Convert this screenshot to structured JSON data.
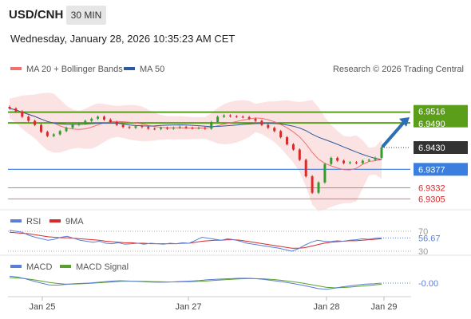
{
  "header": {
    "symbol": "USD/CNH",
    "interval": "30 MIN",
    "datetime": "Wednesday, January 28, 2026 10:35:23 AM CET",
    "credit": "Research © 2026 Trading Central"
  },
  "colors": {
    "up": "#2f9e2f",
    "down": "#d62b2b",
    "ma20": "#f07070",
    "ma50": "#2c5aa0",
    "band_fill": "#fbd9d9",
    "resistance": "#5a9e1a",
    "support_blue": "#3a7fe0",
    "support_red": "#e57373",
    "arrow": "#2c6fb5",
    "rsi": "#5b7fd6",
    "rsi_ma": "#d62b2b",
    "macd": "#5b7fd6",
    "macd_signal": "#5aa02c"
  },
  "chart_data": [
    {
      "type": "candlestick",
      "x_ticks": [
        "Jan 25",
        "Jan 27",
        "Jan 28",
        "Jan 29"
      ],
      "legend": [
        {
          "name": "MA 20 + Bollinger Bands",
          "color": "#f07070"
        },
        {
          "name": "MA 50",
          "color": "#2c5aa0"
        }
      ],
      "ylim": [
        6.93,
        6.956
      ],
      "last_price": 6.943,
      "levels": [
        {
          "value": 6.9516,
          "label": "6.9516",
          "kind": "resistance"
        },
        {
          "value": 6.949,
          "label": "6.9490",
          "kind": "resistance"
        },
        {
          "value": 6.943,
          "label": "6.9430",
          "kind": "last"
        },
        {
          "value": 6.9377,
          "label": "6.9377",
          "kind": "support"
        },
        {
          "value": 6.9332,
          "label": "6.9332",
          "kind": "support_minor"
        },
        {
          "value": 6.9305,
          "label": "6.9305",
          "kind": "support_minor"
        }
      ],
      "close_series": [
        6.9525,
        6.9518,
        6.9505,
        6.9495,
        6.9485,
        6.9468,
        6.9458,
        6.9462,
        6.947,
        6.9478,
        6.9485,
        6.9488,
        6.9495,
        6.95,
        6.9505,
        6.9498,
        6.9492,
        6.9485,
        6.948,
        6.9478,
        6.9482,
        6.948,
        6.9476,
        6.9475,
        6.9478,
        6.9476,
        6.9478,
        6.948,
        6.9478,
        6.9477,
        6.9478,
        6.9476,
        6.9492,
        6.9505,
        6.9508,
        6.9506,
        6.9505,
        6.9504,
        6.95,
        6.9495,
        6.9485,
        6.9478,
        6.947,
        6.9455,
        6.9438,
        6.9425,
        6.94,
        6.936,
        6.932,
        6.9345,
        6.939,
        6.9405,
        6.9398,
        6.9392,
        6.9394,
        6.9392,
        6.9398,
        6.94,
        6.9405,
        6.943
      ],
      "trend_arrow": {
        "from": 6.943,
        "to": 6.95,
        "direction": "up"
      }
    },
    {
      "type": "line",
      "name": "RSI panel",
      "legend": [
        {
          "name": "RSI",
          "color": "#5b7fd6"
        },
        {
          "name": "9MA",
          "color": "#d62b2b"
        }
      ],
      "ylim": [
        30,
        70
      ],
      "levels": [
        70,
        30
      ],
      "level_labels": [
        "70",
        "30"
      ],
      "last_value": "56.67",
      "rsi": [
        72,
        70,
        68,
        62,
        58,
        55,
        52,
        54,
        58,
        60,
        56,
        52,
        50,
        48,
        50,
        46,
        45,
        47,
        44,
        45,
        46,
        44,
        46,
        45,
        44,
        46,
        45,
        47,
        46,
        52,
        58,
        56,
        54,
        52,
        55,
        53,
        50,
        46,
        44,
        42,
        40,
        38,
        36,
        33,
        30,
        35,
        42,
        48,
        52,
        50,
        49,
        51,
        50,
        52,
        53,
        55,
        54,
        56,
        56.67
      ],
      "ma9": [
        68,
        67,
        66,
        65,
        63,
        61,
        59,
        58,
        57,
        57,
        56,
        55,
        54,
        53,
        52,
        50,
        49,
        48,
        47,
        47,
        46,
        46,
        45,
        45,
        45,
        45,
        45,
        46,
        46,
        48,
        50,
        51,
        52,
        52,
        53,
        53,
        52,
        50,
        48,
        46,
        44,
        42,
        40,
        38,
        36,
        36,
        37,
        40,
        43,
        46,
        48,
        49,
        50,
        51,
        51,
        52,
        53,
        54,
        55
      ]
    },
    {
      "type": "line",
      "name": "MACD panel",
      "legend": [
        {
          "name": "MACD",
          "color": "#5b7fd6"
        },
        {
          "name": "MACD Signal",
          "color": "#5aa02c"
        }
      ],
      "ylim": [
        -0.006,
        0.006
      ],
      "last_value": "-0.00",
      "macd": [
        0.004,
        0.0035,
        0.0025,
        0.0012,
        0.0,
        -0.001,
        -0.0012,
        -0.0008,
        -0.0004,
        -0.0002,
        0.0,
        0.0004,
        0.0008,
        0.0012,
        0.0014,
        0.0012,
        0.001,
        0.0008,
        0.0006,
        0.0005,
        0.0006,
        0.0008,
        0.001,
        0.0012,
        0.0015,
        0.002,
        0.0022,
        0.0024,
        0.0026,
        0.0028,
        0.0028,
        0.0026,
        0.0022,
        0.0016,
        0.001,
        0.0004,
        -0.0004,
        -0.0012,
        -0.0022,
        -0.0032,
        -0.0036,
        -0.003,
        -0.0022,
        -0.0016,
        -0.001,
        -0.0006,
        -0.0004,
        0.0
      ],
      "signal": [
        0.0032,
        0.003,
        0.0026,
        0.002,
        0.0012,
        0.0004,
        -0.0002,
        -0.0006,
        -0.0006,
        -0.0004,
        -0.0002,
        0.0001,
        0.0004,
        0.0007,
        0.001,
        0.0011,
        0.0011,
        0.001,
        0.0009,
        0.0008,
        0.0007,
        0.0007,
        0.0008,
        0.0009,
        0.0011,
        0.0013,
        0.0016,
        0.0019,
        0.0022,
        0.0024,
        0.0026,
        0.0026,
        0.0025,
        0.0022,
        0.0018,
        0.0013,
        0.0007,
        0.0,
        -0.0008,
        -0.0016,
        -0.0024,
        -0.0027,
        -0.0026,
        -0.0023,
        -0.0019,
        -0.0015,
        -0.0011,
        -0.0007
      ]
    }
  ]
}
